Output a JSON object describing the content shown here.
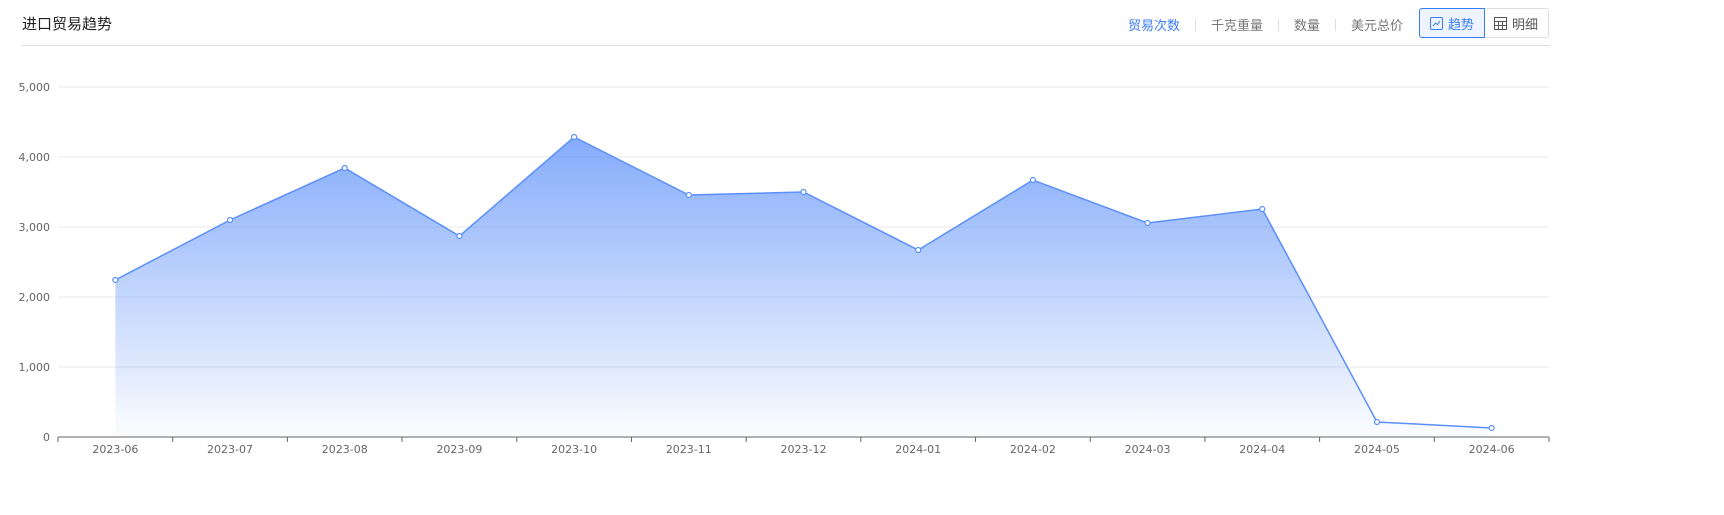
{
  "header": {
    "title": "进口贸易趋势"
  },
  "metrics": [
    {
      "label": "贸易次数",
      "active": true
    },
    {
      "label": "千克重量"
    },
    {
      "label": "数量"
    },
    {
      "label": "美元总价"
    }
  ],
  "view_toggle": [
    {
      "label": "趋势",
      "icon": "line-chart-icon",
      "active": true
    },
    {
      "label": "明细",
      "icon": "table-icon"
    }
  ],
  "colors": {
    "accent": "#3a7bf7",
    "line": "#5b8ff9"
  },
  "chart_data": {
    "type": "area",
    "categories": [
      "2023-06",
      "2023-07",
      "2023-08",
      "2023-09",
      "2023-10",
      "2023-11",
      "2023-12",
      "2024-01",
      "2024-02",
      "2024-03",
      "2024-04",
      "2024-05",
      "2024-06"
    ],
    "values": [
      2243,
      3100,
      3843,
      2871,
      4286,
      3457,
      3500,
      2671,
      3671,
      3057,
      3257,
      214,
      129
    ],
    "ylim": [
      0,
      5000
    ],
    "yticks": [
      "0",
      "1,000",
      "2,000",
      "3,000",
      "4,000",
      "5,000"
    ],
    "grid": true
  }
}
